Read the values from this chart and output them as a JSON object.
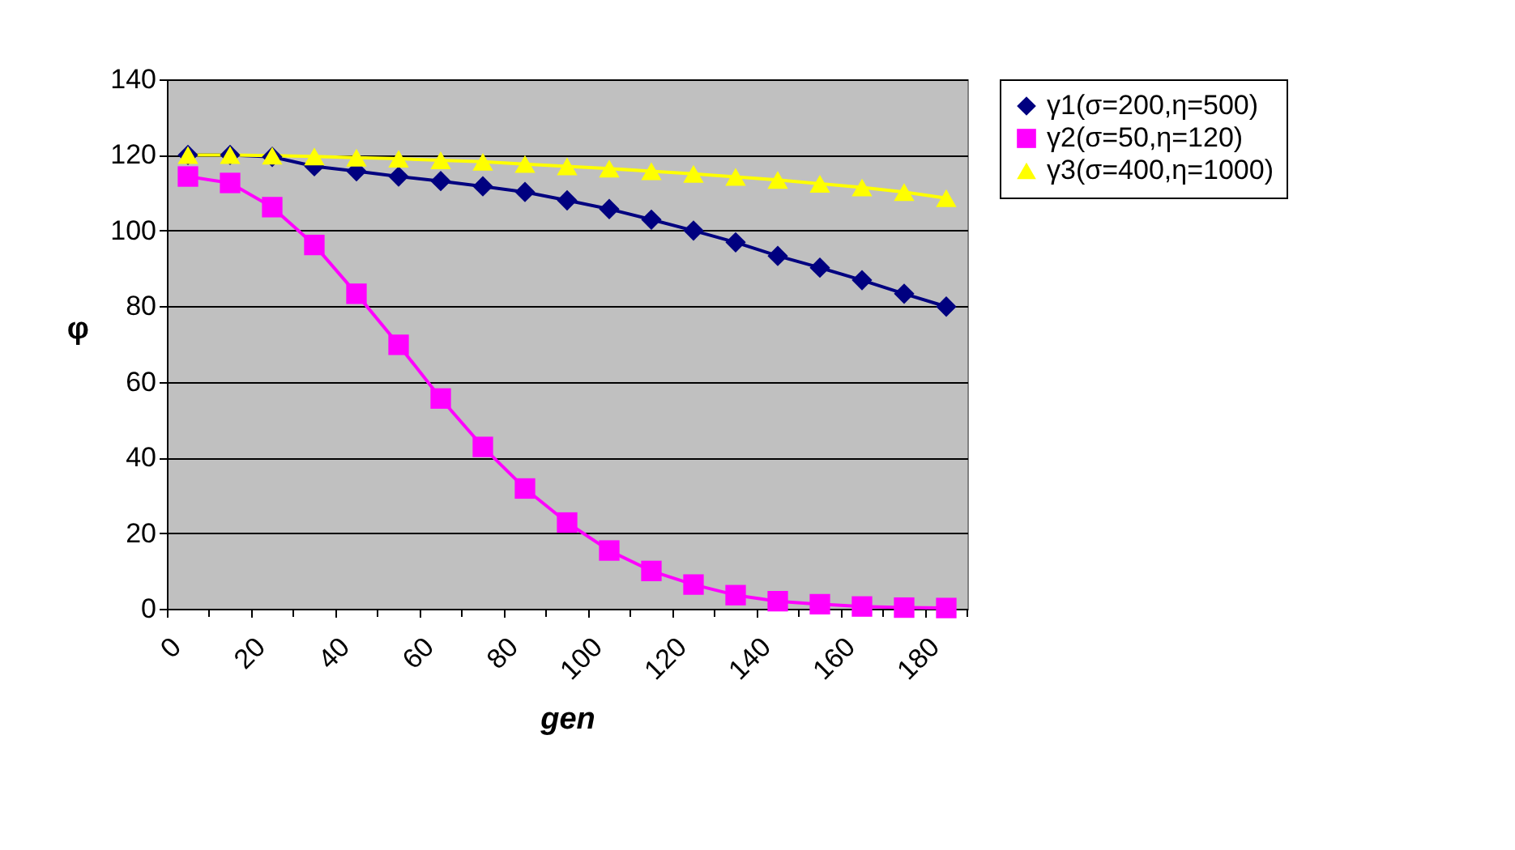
{
  "chart_data": {
    "type": "line",
    "xlabel": "gen",
    "ylabel": "φ",
    "x": [
      5,
      15,
      25,
      35,
      45,
      55,
      65,
      75,
      85,
      95,
      105,
      115,
      125,
      135,
      145,
      155,
      165,
      175,
      185
    ],
    "xlim": [
      0,
      190
    ],
    "xticks": [
      0,
      {
        "value": 10,
        "label": null
      },
      20,
      {
        "value": 30,
        "label": null
      },
      40,
      {
        "value": 50,
        "label": null
      },
      60,
      {
        "value": 70,
        "label": null
      },
      80,
      {
        "value": 90,
        "label": null
      },
      100,
      {
        "value": 110,
        "label": null
      },
      120,
      {
        "value": 130,
        "label": null
      },
      140,
      {
        "value": 150,
        "label": null
      },
      160,
      {
        "value": 170,
        "label": null
      },
      180,
      {
        "value": 190,
        "label": null
      }
    ],
    "ylim": [
      0,
      140
    ],
    "yticks": [
      0,
      20,
      40,
      60,
      80,
      100,
      120,
      140
    ],
    "grid": "y",
    "legend": "right",
    "line_style": "solid",
    "series": [
      {
        "name": "γ1(σ=200,η=500)",
        "color": "#000080",
        "marker": "diamond",
        "values": [
          120,
          120,
          119.5,
          117,
          115.7,
          114.3,
          113.1,
          111.7,
          110.2,
          108,
          105.7,
          102.9,
          100,
          96.9,
          93.3,
          90.2,
          86.9,
          83.3,
          79.9
        ]
      },
      {
        "name": "γ2(σ=50,η=120)",
        "color": "#ff00ff",
        "marker": "square",
        "values": [
          114.3,
          112.6,
          106.2,
          96.2,
          83.3,
          69.8,
          55.6,
          42.8,
          31.8,
          22.8,
          15.4,
          10,
          6.4,
          3.6,
          2,
          1.2,
          0.6,
          0.3,
          0.2
        ]
      },
      {
        "name": "γ3(σ=400,η=1000)",
        "color": "#ffff00",
        "marker": "triangle",
        "values": [
          120,
          120,
          119.8,
          119.6,
          119.3,
          119,
          118.6,
          118.2,
          117.6,
          117,
          116.4,
          115.7,
          115,
          114.2,
          113.4,
          112.4,
          111.4,
          110.2,
          108.6
        ]
      }
    ]
  }
}
